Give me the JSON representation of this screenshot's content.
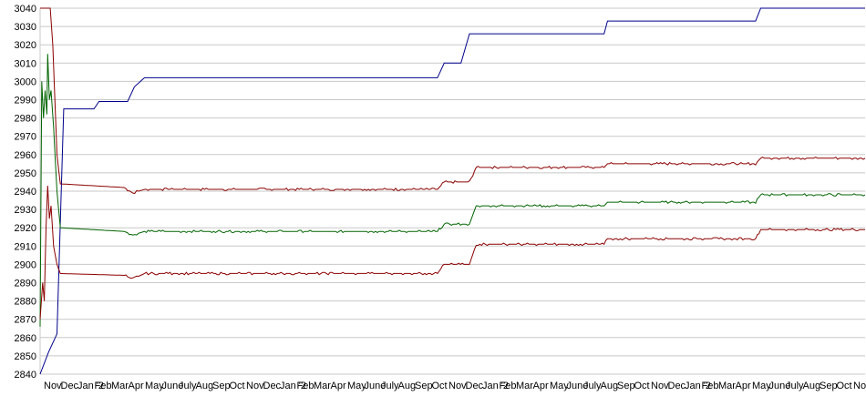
{
  "chart_data": {
    "type": "line",
    "title": "",
    "xlabel": "",
    "ylabel": "",
    "ylim": [
      2840,
      3040
    ],
    "y_ticks": [
      2840,
      2850,
      2860,
      2870,
      2880,
      2890,
      2900,
      2910,
      2920,
      2930,
      2940,
      2950,
      2960,
      2970,
      2980,
      2990,
      3000,
      3010,
      3020,
      3030,
      3040
    ],
    "x_tick_labels": [
      "Nov",
      "Dec",
      "Jan '2",
      "Feb",
      "Mar",
      "Apr",
      "May",
      "June",
      "July",
      "Aug",
      "Sep",
      "Oct",
      "Nov",
      "Dec",
      "Jan '2",
      "Feb",
      "Mar",
      "Apr",
      "May",
      "June",
      "July",
      "Aug",
      "Sep",
      "Oct",
      "Nov",
      "Dec",
      "Jan '2",
      "Feb",
      "Mar",
      "Apr",
      "May",
      "June",
      "July",
      "Aug",
      "Sep",
      "Oct",
      "Nov",
      "Dec",
      "Jan '2",
      "Feb",
      "Mar",
      "Apr",
      "May",
      "June",
      "July",
      "Aug",
      "Sep",
      "Oct",
      "No"
    ],
    "x_range": [
      0,
      49
    ],
    "grid": true,
    "colors": {
      "blue": "#00008b",
      "upper_band": "#8b0000",
      "middle": "#006400",
      "lower_band": "#8b0000",
      "grid": "#c8c8c8"
    },
    "series": [
      {
        "color": "blue",
        "points": [
          [
            0,
            2840
          ],
          [
            0.5,
            2852
          ],
          [
            1,
            2862
          ],
          [
            1.4,
            2985
          ],
          [
            3.2,
            2985
          ],
          [
            3.5,
            2989
          ],
          [
            5.2,
            2989
          ],
          [
            5.6,
            2997
          ],
          [
            6.2,
            3002
          ],
          [
            23.6,
            3002
          ],
          [
            24,
            3010
          ],
          [
            25,
            3010
          ],
          [
            25.5,
            3026
          ],
          [
            33.5,
            3026
          ],
          [
            33.7,
            3033
          ],
          [
            42.5,
            3033
          ],
          [
            42.8,
            3040
          ],
          [
            49,
            3040
          ]
        ]
      },
      {
        "color": "upper_band",
        "points": [
          [
            0,
            3040
          ],
          [
            0.6,
            3040
          ],
          [
            0.75,
            3020
          ],
          [
            1,
            2960
          ],
          [
            1.2,
            2944
          ],
          [
            5,
            2942
          ],
          [
            5.5,
            2939
          ],
          [
            6.2,
            2941
          ],
          [
            23.6,
            2941
          ],
          [
            24,
            2945
          ],
          [
            25.5,
            2945
          ],
          [
            25.9,
            2953
          ],
          [
            33.5,
            2953
          ],
          [
            33.7,
            2955
          ],
          [
            42.5,
            2955
          ],
          [
            42.8,
            2958
          ],
          [
            49,
            2958
          ]
        ]
      },
      {
        "color": "middle",
        "points": [
          [
            0,
            2866
          ],
          [
            0.1,
            3000
          ],
          [
            0.2,
            2980
          ],
          [
            0.3,
            2995
          ],
          [
            0.4,
            2982
          ],
          [
            0.45,
            3015
          ],
          [
            0.55,
            2990
          ],
          [
            0.65,
            2995
          ],
          [
            0.8,
            2975
          ],
          [
            1,
            2940
          ],
          [
            1.2,
            2920
          ],
          [
            5,
            2918
          ],
          [
            5.5,
            2916
          ],
          [
            6.2,
            2918
          ],
          [
            23.6,
            2918
          ],
          [
            24,
            2922
          ],
          [
            25.5,
            2922
          ],
          [
            25.9,
            2932
          ],
          [
            33.5,
            2932
          ],
          [
            33.7,
            2934
          ],
          [
            42.5,
            2934
          ],
          [
            42.8,
            2938
          ],
          [
            49,
            2938
          ]
        ]
      },
      {
        "color": "lower_band",
        "points": [
          [
            0,
            2870
          ],
          [
            0.15,
            2890
          ],
          [
            0.25,
            2880
          ],
          [
            0.35,
            2920
          ],
          [
            0.45,
            2943
          ],
          [
            0.55,
            2925
          ],
          [
            0.65,
            2932
          ],
          [
            0.8,
            2910
          ],
          [
            1,
            2900
          ],
          [
            1.2,
            2895
          ],
          [
            5,
            2894
          ],
          [
            5.5,
            2892
          ],
          [
            6.2,
            2895
          ],
          [
            23.6,
            2895
          ],
          [
            24,
            2900
          ],
          [
            25.5,
            2900
          ],
          [
            25.9,
            2911
          ],
          [
            33.5,
            2911
          ],
          [
            33.7,
            2914
          ],
          [
            42.5,
            2914
          ],
          [
            42.8,
            2919
          ],
          [
            49,
            2919
          ]
        ]
      }
    ]
  }
}
